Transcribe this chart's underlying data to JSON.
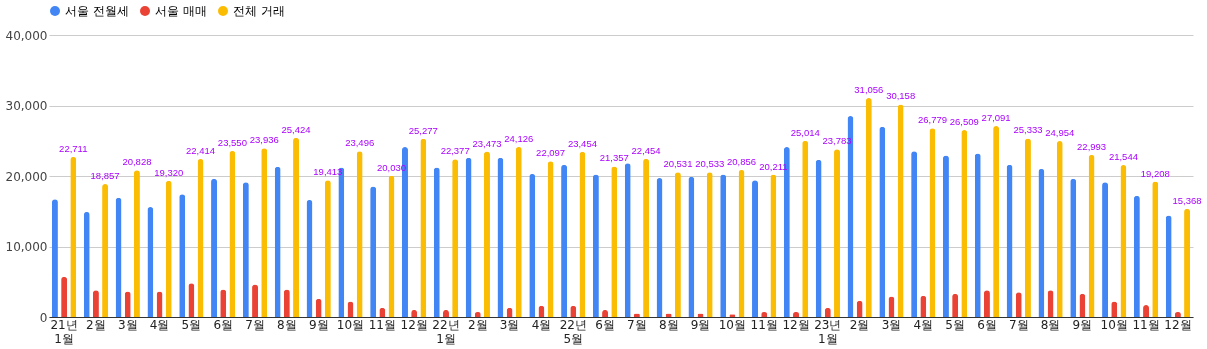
{
  "chart_data": {
    "type": "bar",
    "categories": [
      "21년\n1월",
      "2월",
      "3월",
      "4월",
      "5월",
      "6월",
      "7월",
      "8월",
      "9월",
      "10월",
      "11월",
      "12월",
      "22년\n1월",
      "2월",
      "3월",
      "4월",
      "22년\n5월",
      "6월",
      "7월",
      "8월",
      "9월",
      "10월",
      "11월",
      "12월",
      "23년\n1월",
      "2월",
      "3월",
      "4월",
      "5월",
      "6월",
      "7월",
      "8월",
      "9월",
      "10월",
      "11월",
      "12월"
    ],
    "series": [
      {
        "name": "서울 전월세",
        "color": "#4285f4",
        "values": [
          16700,
          14900,
          16900,
          15600,
          17400,
          19600,
          19100,
          21300,
          16600,
          21200,
          18500,
          24100,
          21200,
          22600,
          22600,
          20300,
          21600,
          20200,
          21800,
          19700,
          19900,
          20200,
          19400,
          24100,
          22300,
          28500,
          27000,
          23500,
          22900,
          23200,
          21600,
          21000,
          19600,
          19100,
          17200,
          14400
        ]
      },
      {
        "name": "서울 매매",
        "color": "#ea4335",
        "values": [
          5700,
          3800,
          3600,
          3600,
          4800,
          3900,
          4600,
          3900,
          2600,
          2200,
          1300,
          1000,
          1000,
          700,
          1300,
          1600,
          1600,
          1000,
          500,
          500,
          500,
          400,
          700,
          700,
          1300,
          2300,
          2900,
          3000,
          3300,
          3800,
          3500,
          3800,
          3300,
          2200,
          1700,
          700
        ]
      },
      {
        "name": "전체 거래",
        "color": "#fbbc04",
        "values": [
          22711,
          18857,
          20828,
          19320,
          22414,
          23550,
          23936,
          25424,
          19413,
          23496,
          20030,
          25277,
          22377,
          23473,
          24126,
          22097,
          23454,
          21357,
          22454,
          20531,
          20533,
          20856,
          20211,
          25014,
          23783,
          31056,
          30158,
          26779,
          26509,
          27091,
          25333,
          24954,
          22993,
          21544,
          19208,
          15368
        ],
        "value_labels": [
          "22,711",
          "18,857",
          "20,828",
          "19,320",
          "22,414",
          "23,550",
          "23,936",
          "25,424",
          "19,413",
          "23,496",
          "20,030",
          "25,277",
          "22,377",
          "23,473",
          "24,126",
          "22,097",
          "23,454",
          "21,357",
          "22,454",
          "20,531",
          "20,533",
          "20,856",
          "20,211",
          "25,014",
          "23,783",
          "31,056",
          "30,158",
          "26,779",
          "26,509",
          "27,091",
          "25,333",
          "24,954",
          "22,993",
          "21,544",
          "19,208",
          "15,368"
        ]
      }
    ],
    "ylim": [
      0,
      40000
    ],
    "yticks": [
      0,
      {
        "value": 10000,
        "label": "10,000"
      },
      {
        "value": 20000,
        "label": "20,000"
      },
      {
        "value": 30000,
        "label": "30,000"
      },
      {
        "value": 40000,
        "label": "40,000"
      }
    ],
    "grid": "y",
    "legend": "top"
  }
}
